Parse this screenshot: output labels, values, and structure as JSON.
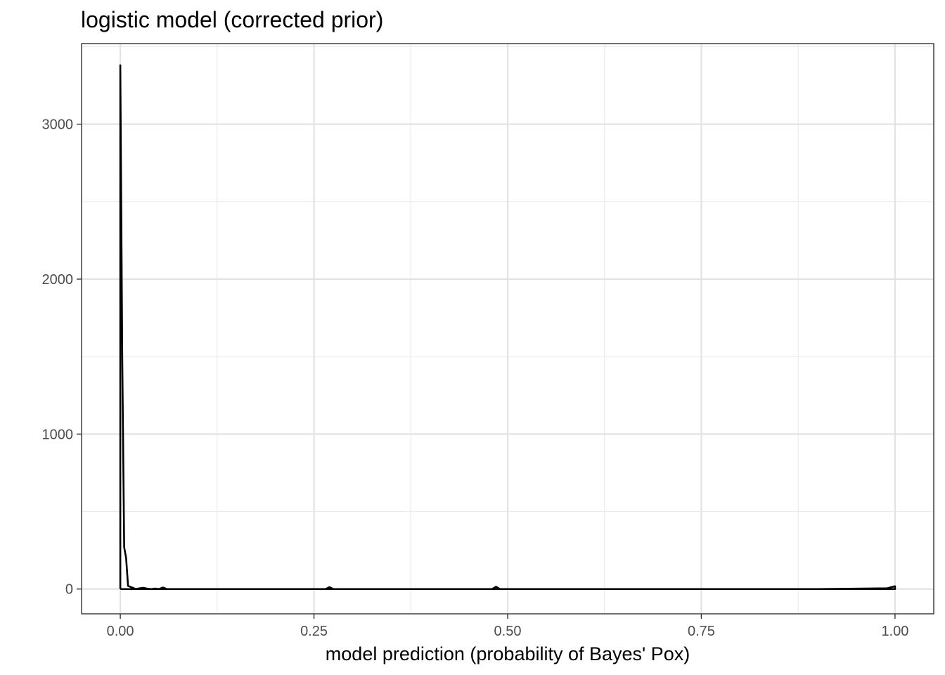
{
  "chart_data": {
    "type": "line",
    "title": "logistic model (corrected prior)",
    "xlabel": "model prediction (probability of Bayes' Pox)",
    "ylabel": "",
    "xlim": [
      -0.05,
      1.05
    ],
    "ylim": [
      -160,
      3520
    ],
    "x_ticks": [
      0.0,
      0.25,
      0.5,
      0.75,
      1.0
    ],
    "x_tick_labels": [
      "0.00",
      "0.25",
      "0.50",
      "0.75",
      "1.00"
    ],
    "y_ticks": [
      0,
      1000,
      2000,
      3000
    ],
    "y_tick_labels": [
      "0",
      "1000",
      "2000",
      "3000"
    ],
    "grid": true,
    "theme": "bw",
    "line_color": "#000000",
    "series": [
      {
        "x": [
          0.0,
          0.0,
          0.0025,
          0.005,
          0.0075,
          0.01,
          0.02,
          0.025,
          0.03,
          0.035,
          0.04,
          0.045,
          0.05,
          0.055,
          0.06,
          0.1,
          0.2,
          0.265,
          0.27,
          0.275,
          0.3,
          0.4,
          0.48,
          0.485,
          0.49,
          0.5,
          0.6,
          0.7,
          0.8,
          0.9,
          0.99,
          1.0,
          1.0,
          0.0
        ],
        "y": [
          0,
          3380,
          1500,
          270,
          200,
          20,
          0,
          5,
          8,
          2,
          0,
          3,
          0,
          10,
          0,
          0,
          0,
          0,
          12,
          0,
          0,
          0,
          0,
          15,
          0,
          0,
          0,
          0,
          0,
          0,
          5,
          18,
          0,
          0
        ]
      }
    ]
  }
}
